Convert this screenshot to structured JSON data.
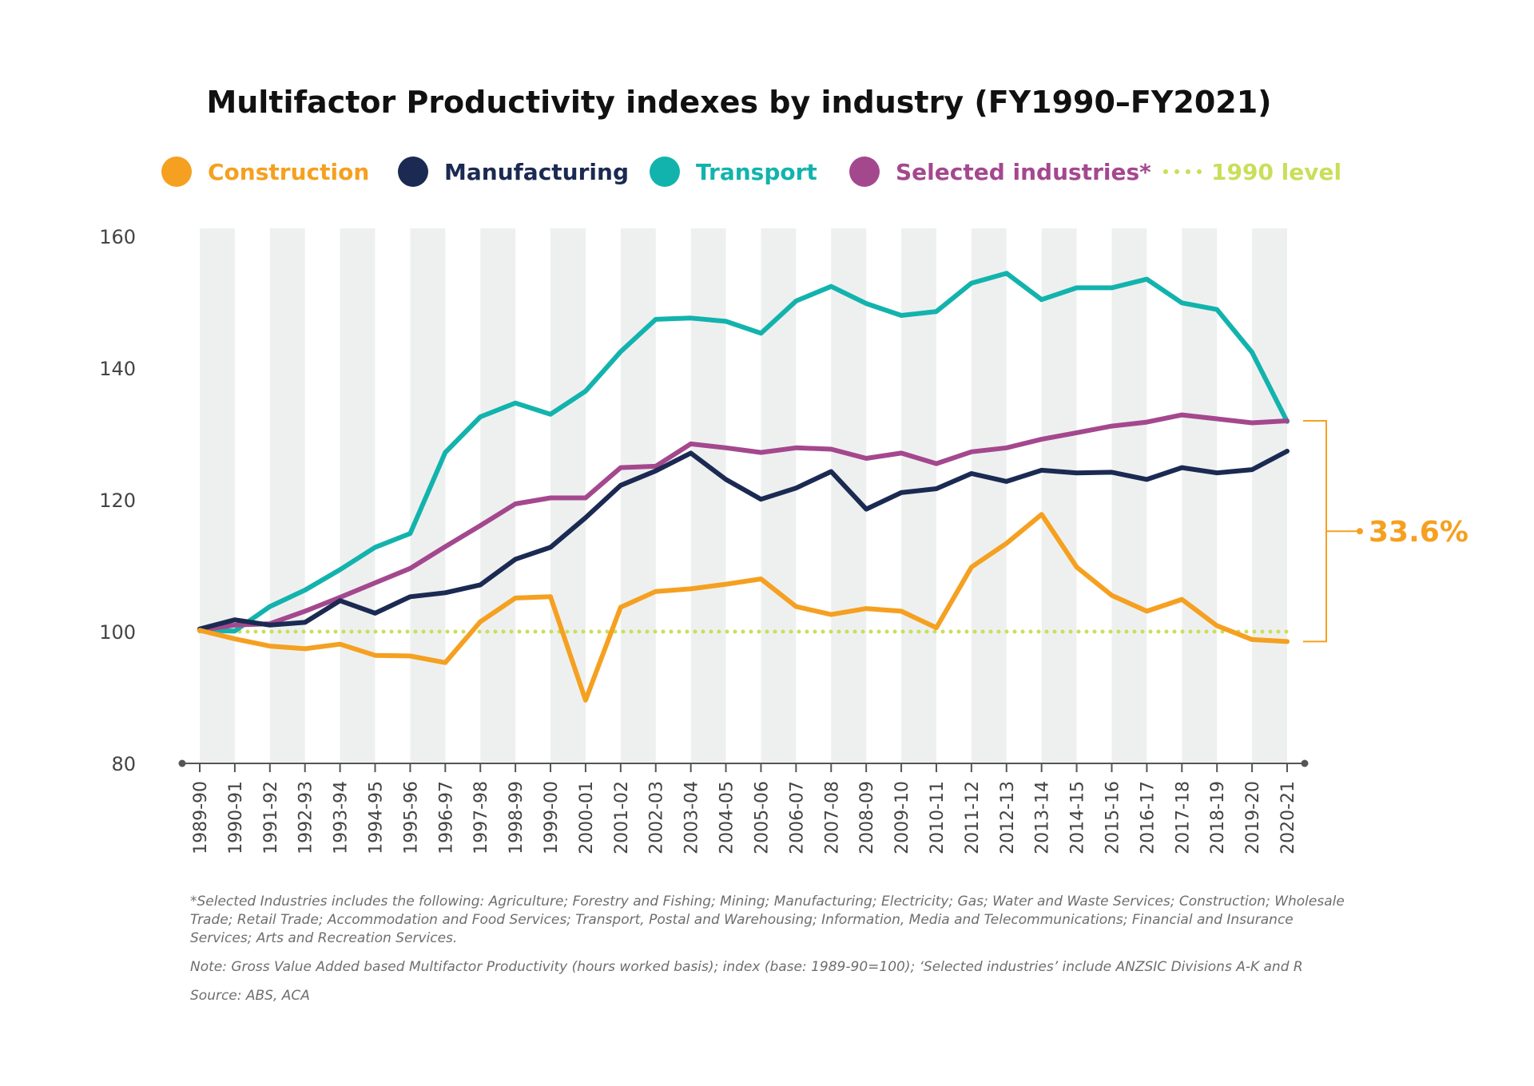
{
  "colors": {
    "construction": "#f5a020",
    "manufacturing": "#1b2a52",
    "transport": "#13b3ad",
    "selected": "#a4488e",
    "baseline": "#c8df5a",
    "band": "#eef0ef",
    "axis": "#555555",
    "text": "#444444"
  },
  "legend": {
    "construction": "Construction",
    "manufacturing": "Manufacturing",
    "transport": "Transport",
    "selected": "Selected industries*",
    "baseline": "1990 level"
  },
  "annotation": {
    "label": "33.6%"
  },
  "footnotes": {
    "selected_def": "*Selected Industries includes the following: Agriculture; Forestry and Fishing; Mining; Manufacturing; Electricity; Gas; Water and Waste Services; Construction; Wholesale Trade; Retail Trade; Accommodation and Food Services; Transport, Postal and Warehousing; Information, Media and Telecommunications; Financial and Insurance Services; Arts and Recreation Services.",
    "note": "Note: Gross Value Added based Multifactor Productivity (hours worked basis); index (base: 1989-90=100); ‘Selected industries’ include ANZSIC Divisions A-K and R",
    "source": "Source: ABS, ACA"
  },
  "chart_data": {
    "type": "line",
    "title": "Multifactor Productivity indexes by industry (FY1990–FY2021)",
    "xlabel": "",
    "ylabel": "",
    "ylim": [
      80,
      160
    ],
    "yticks": [
      80,
      100,
      120,
      140,
      160
    ],
    "baseline": 100,
    "categories": [
      "1989-90",
      "1990-91",
      "1991-92",
      "1992-93",
      "1993-94",
      "1994-95",
      "1995-96",
      "1996-97",
      "1997-98",
      "1998-99",
      "1999-00",
      "2000-01",
      "2001-02",
      "2002-03",
      "2003-04",
      "2004-05",
      "2005-06",
      "2006-07",
      "2007-08",
      "2008-09",
      "2009-10",
      "2010-11",
      "2011-12",
      "2012-13",
      "2013-14",
      "2014-15",
      "2015-16",
      "2016-17",
      "2017-18",
      "2018-19",
      "2019-20",
      "2020-21"
    ],
    "series": [
      {
        "key": "transport",
        "name": "Transport",
        "values": [
          100.2,
          100.1,
          103.8,
          106.3,
          109.4,
          112.8,
          114.9,
          127.2,
          132.6,
          134.7,
          133.0,
          136.5,
          142.5,
          147.4,
          147.6,
          147.1,
          145.3,
          150.2,
          152.4,
          149.8,
          148.0,
          148.6,
          152.9,
          154.4,
          150.4,
          152.2,
          152.2,
          153.5,
          149.9,
          148.9,
          142.4,
          131.9
        ]
      },
      {
        "key": "selected",
        "name": "Selected industries*",
        "values": [
          100.2,
          101.0,
          101.2,
          103.1,
          105.2,
          107.4,
          109.6,
          112.9,
          116.1,
          119.4,
          120.3,
          120.3,
          124.9,
          125.1,
          128.5,
          127.9,
          127.2,
          127.9,
          127.7,
          126.3,
          127.1,
          125.5,
          127.3,
          127.9,
          129.2,
          130.2,
          131.2,
          131.8,
          132.9,
          132.3,
          131.7,
          132.0
        ]
      },
      {
        "key": "manufacturing",
        "name": "Manufacturing",
        "values": [
          100.4,
          101.8,
          101.0,
          101.4,
          104.7,
          102.8,
          105.3,
          105.9,
          107.1,
          111.0,
          112.8,
          117.3,
          122.2,
          124.4,
          127.1,
          123.1,
          120.1,
          121.8,
          124.3,
          118.6,
          121.1,
          121.7,
          124.0,
          122.8,
          124.5,
          124.1,
          124.2,
          123.1,
          124.9,
          124.1,
          124.6,
          127.4
        ]
      },
      {
        "key": "construction",
        "name": "Construction",
        "values": [
          100.2,
          98.9,
          97.8,
          97.4,
          98.1,
          96.4,
          96.3,
          95.3,
          101.5,
          105.1,
          105.3,
          89.6,
          103.7,
          106.1,
          106.5,
          107.2,
          108.0,
          103.8,
          102.6,
          103.5,
          103.1,
          100.6,
          109.8,
          113.4,
          117.8,
          109.8,
          105.5,
          103.1,
          104.9,
          100.9,
          98.8,
          98.5
        ]
      }
    ],
    "annotation": {
      "label": "33.6%",
      "from": 98.5,
      "to": 132.0
    }
  }
}
